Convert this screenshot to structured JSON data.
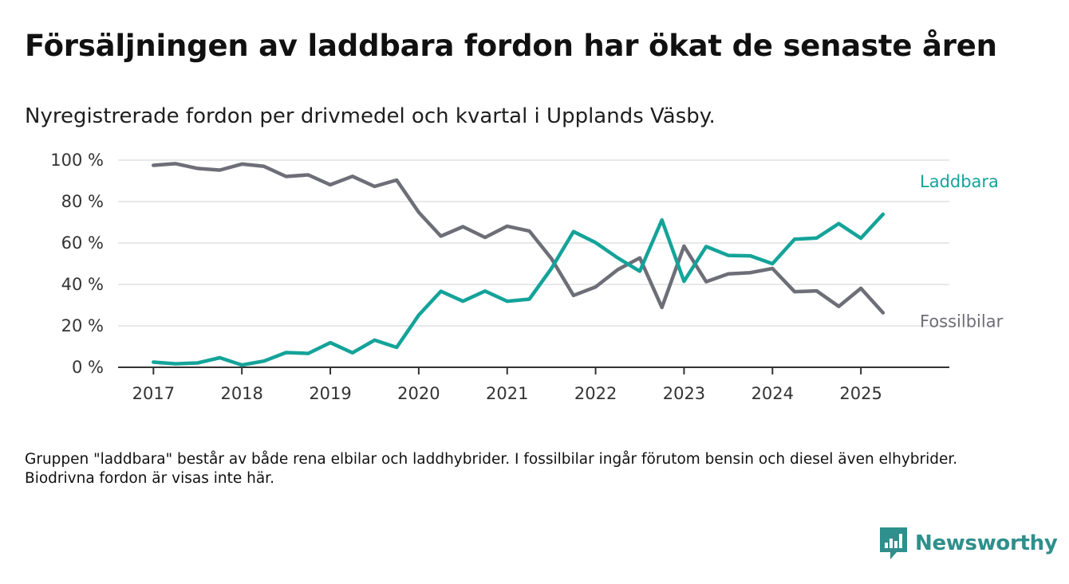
{
  "header": {
    "title": "Försäljningen av laddbara fordon har ökat de senaste åren",
    "subtitle": "Nyregistrerade fordon per drivmedel och kvartal i Upplands Väsby."
  },
  "footnote": "Gruppen \"laddbara\" består av både rena elbilar och laddhybrider. I fossilbilar ingår förutom bensin och diesel även elhybrider. Biodrivna fordon är visas inte här.",
  "brand": {
    "name": "Newsworthy",
    "icon": "newsworthy-logo-icon",
    "color": "#2e8f8c"
  },
  "chart_data": {
    "type": "line",
    "title": "Försäljningen av laddbara fordon har ökat de senaste åren",
    "subtitle": "Nyregistrerade fordon per drivmedel och kvartal i Upplands Väsby.",
    "xlabel": "",
    "ylabel": "",
    "x_ticks": [
      "2017",
      "2018",
      "2019",
      "2020",
      "2021",
      "2022",
      "2023",
      "2024",
      "2025"
    ],
    "y_ticks": [
      "0 %",
      "20 %",
      "40 %",
      "60 %",
      "80 %",
      "100 %"
    ],
    "ylim": [
      0,
      100
    ],
    "xlim": [
      2016.6,
      2026.0
    ],
    "grid": "horizontal",
    "legend": "direct labels at line ends (right)",
    "x": [
      2017.0,
      2017.25,
      2017.5,
      2017.75,
      2018.0,
      2018.25,
      2018.5,
      2018.75,
      2019.0,
      2019.25,
      2019.5,
      2019.75,
      2020.0,
      2020.25,
      2020.5,
      2020.75,
      2021.0,
      2021.25,
      2021.5,
      2021.75,
      2022.0,
      2022.25,
      2022.5,
      2022.75,
      2023.0,
      2023.25,
      2023.5,
      2023.75,
      2024.0,
      2024.25,
      2024.5,
      2024.75,
      2025.0,
      2025.25
    ],
    "series": [
      {
        "name": "Laddbara",
        "color": "#14a399",
        "values": [
          2.5,
          1.7,
          2.1,
          4.6,
          1.1,
          3.0,
          7.1,
          6.7,
          11.9,
          7.0,
          13.1,
          9.6,
          25.2,
          36.7,
          31.9,
          36.8,
          31.9,
          32.9,
          47.7,
          65.5,
          60.2,
          52.8,
          46.4,
          71.1,
          41.5,
          58.3,
          54.0,
          53.8,
          50.0,
          61.8,
          62.4,
          69.4,
          62.3,
          73.9
        ]
      },
      {
        "name": "Fossilbilar",
        "color": "#6e6e78",
        "values": [
          97.5,
          98.3,
          96.0,
          95.2,
          98.1,
          97.0,
          92.1,
          92.9,
          88.1,
          92.2,
          87.3,
          90.4,
          74.8,
          63.3,
          67.9,
          62.7,
          68.1,
          65.8,
          52.5,
          34.7,
          38.8,
          47.1,
          52.8,
          28.9,
          58.5,
          41.3,
          45.1,
          45.7,
          47.7,
          36.5,
          36.9,
          29.4,
          38.1,
          26.3
        ]
      }
    ]
  }
}
